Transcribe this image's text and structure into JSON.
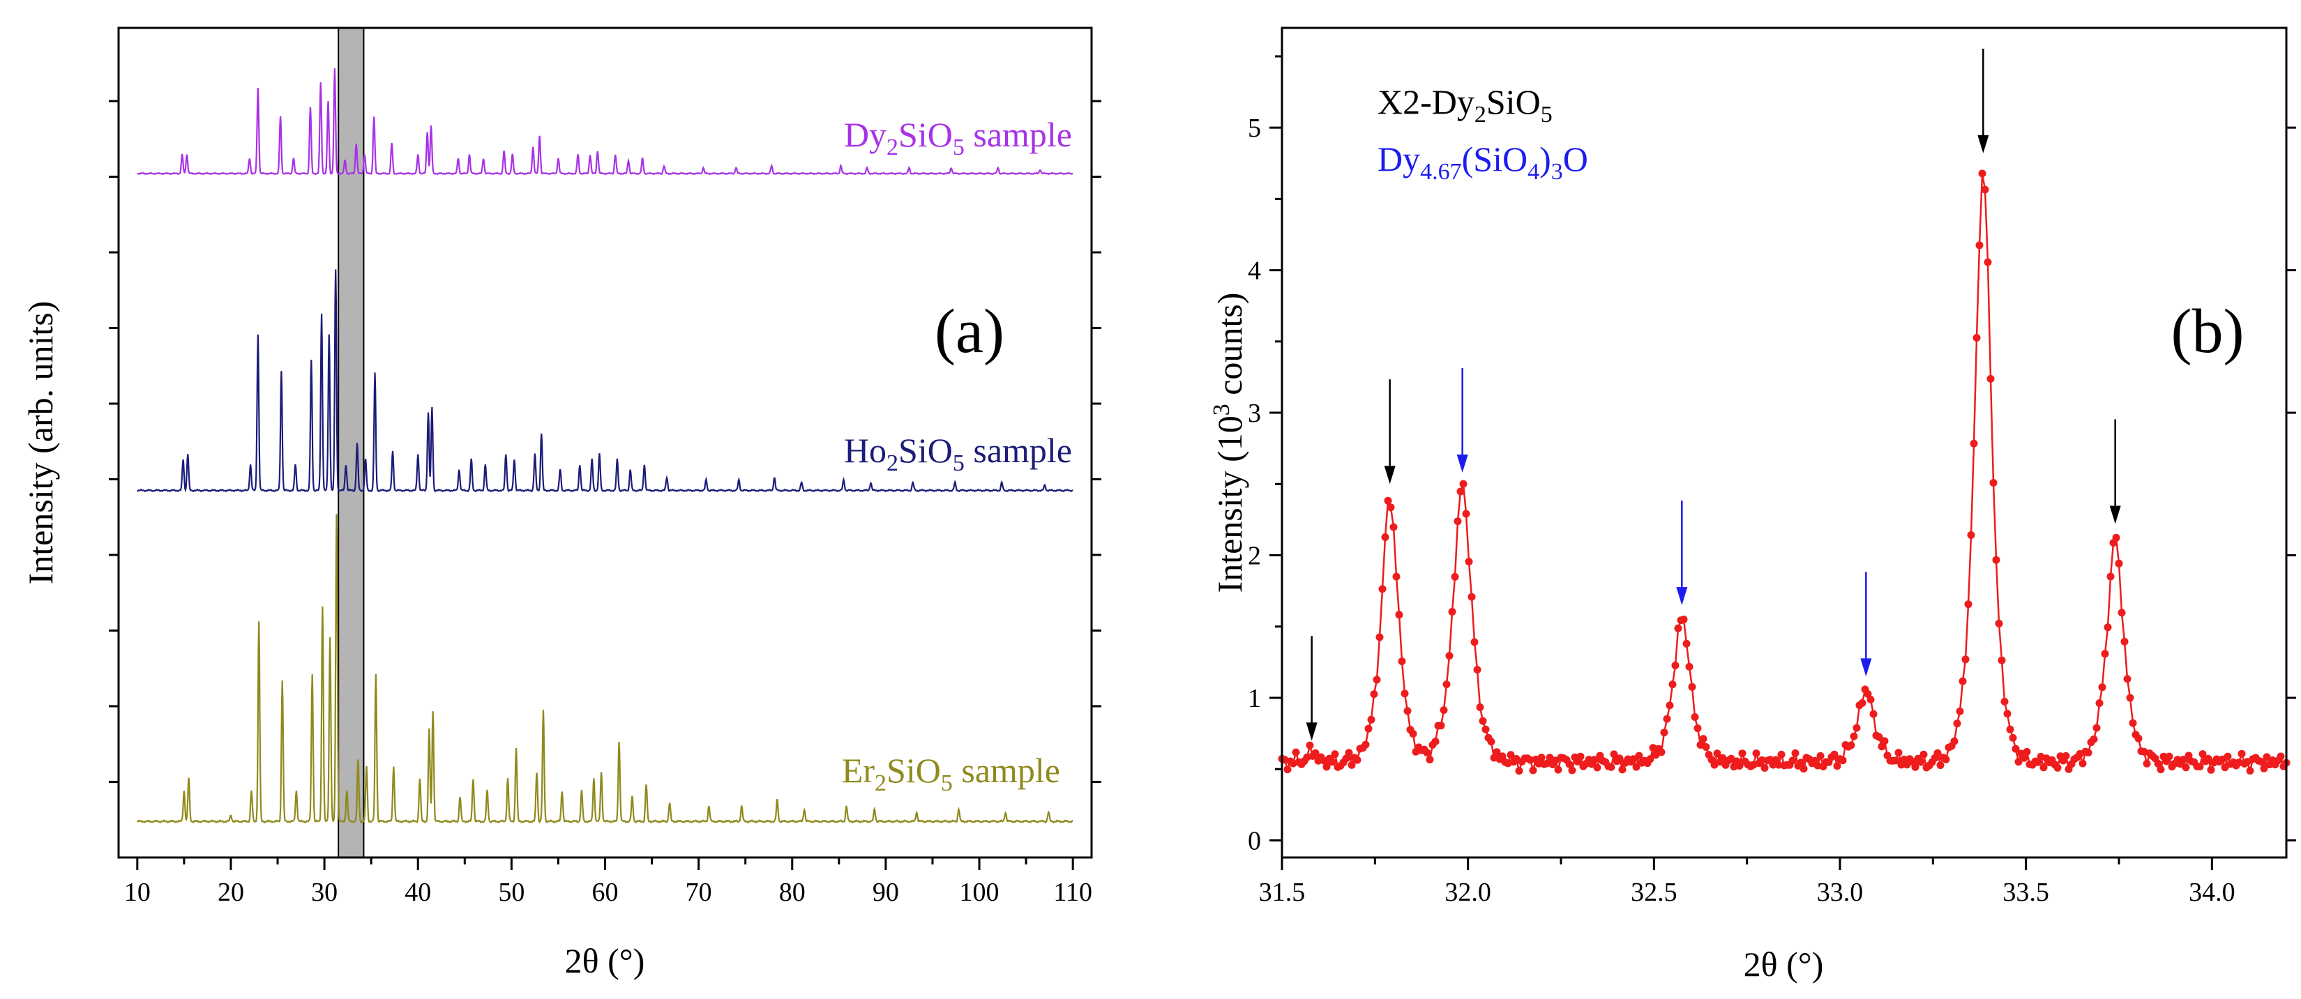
{
  "chart_data": [
    {
      "panel": "(a)",
      "type": "line",
      "xlabel": "2θ (°)",
      "ylabel": "Intensity (arb. units)",
      "xlim": [
        8,
        112
      ],
      "xticks": [
        10,
        20,
        30,
        40,
        50,
        60,
        70,
        80,
        90,
        100,
        110
      ],
      "yticks_labeled": false,
      "highlight_band": {
        "x_start": 31.5,
        "x_end": 34.2,
        "color": "#b4b4b4"
      },
      "series": [
        {
          "name": "Dy2SiO5 sample",
          "label_main": "Dy",
          "label_sub1": "2",
          "label_mid": "SiO",
          "label_sub2": "5",
          "label_tail": " sample",
          "color": "#a832e8",
          "offset": 2.0,
          "scale": 0.6,
          "peaks": [
            [
              14.8,
              0.1
            ],
            [
              15.3,
              0.1
            ],
            [
              22.0,
              0.08
            ],
            [
              22.9,
              0.45
            ],
            [
              25.3,
              0.3
            ],
            [
              26.7,
              0.08
            ],
            [
              28.5,
              0.35
            ],
            [
              29.6,
              0.48
            ],
            [
              30.4,
              0.38
            ],
            [
              31.1,
              0.55
            ],
            [
              32.2,
              0.07
            ],
            [
              33.4,
              0.16
            ],
            [
              34.3,
              0.1
            ],
            [
              35.3,
              0.3
            ],
            [
              37.2,
              0.16
            ],
            [
              40.0,
              0.1
            ],
            [
              41.0,
              0.22
            ],
            [
              41.4,
              0.25
            ],
            [
              44.3,
              0.08
            ],
            [
              45.5,
              0.1
            ],
            [
              47.0,
              0.08
            ],
            [
              49.2,
              0.12
            ],
            [
              50.1,
              0.1
            ],
            [
              52.3,
              0.14
            ],
            [
              53.0,
              0.2
            ],
            [
              55.0,
              0.08
            ],
            [
              57.1,
              0.1
            ],
            [
              58.4,
              0.1
            ],
            [
              59.2,
              0.12
            ],
            [
              61.1,
              0.1
            ],
            [
              62.5,
              0.07
            ],
            [
              64.0,
              0.08
            ],
            [
              66.3,
              0.04
            ],
            [
              70.5,
              0.03
            ],
            [
              74.0,
              0.03
            ],
            [
              77.8,
              0.04
            ],
            [
              85.2,
              0.04
            ],
            [
              88.0,
              0.03
            ],
            [
              92.5,
              0.03
            ],
            [
              97.0,
              0.03
            ],
            [
              102.0,
              0.03
            ],
            [
              106.5,
              0.02
            ]
          ]
        },
        {
          "name": "Ho2SiO5 sample",
          "label_main": "Ho",
          "label_sub1": "2",
          "label_mid": "SiO",
          "label_sub2": "5",
          "label_tail": " sample",
          "color": "#1c1c7a",
          "offset": 1.0,
          "scale": 0.82,
          "peaks": [
            [
              14.9,
              0.12
            ],
            [
              15.4,
              0.14
            ],
            [
              22.1,
              0.1
            ],
            [
              22.9,
              0.6
            ],
            [
              25.4,
              0.46
            ],
            [
              26.9,
              0.1
            ],
            [
              28.6,
              0.5
            ],
            [
              29.7,
              0.68
            ],
            [
              30.5,
              0.6
            ],
            [
              31.2,
              0.85
            ],
            [
              32.3,
              0.1
            ],
            [
              33.5,
              0.18
            ],
            [
              34.4,
              0.12
            ],
            [
              35.4,
              0.45
            ],
            [
              37.3,
              0.15
            ],
            [
              40.0,
              0.14
            ],
            [
              41.1,
              0.3
            ],
            [
              41.5,
              0.32
            ],
            [
              44.4,
              0.08
            ],
            [
              45.7,
              0.12
            ],
            [
              47.2,
              0.1
            ],
            [
              49.4,
              0.14
            ],
            [
              50.3,
              0.12
            ],
            [
              52.5,
              0.14
            ],
            [
              53.2,
              0.22
            ],
            [
              55.2,
              0.08
            ],
            [
              57.3,
              0.1
            ],
            [
              58.6,
              0.12
            ],
            [
              59.4,
              0.14
            ],
            [
              61.3,
              0.12
            ],
            [
              62.7,
              0.08
            ],
            [
              64.2,
              0.1
            ],
            [
              66.6,
              0.05
            ],
            [
              70.8,
              0.04
            ],
            [
              74.3,
              0.04
            ],
            [
              78.1,
              0.05
            ],
            [
              81.0,
              0.03
            ],
            [
              85.5,
              0.04
            ],
            [
              88.4,
              0.03
            ],
            [
              92.9,
              0.03
            ],
            [
              97.4,
              0.03
            ],
            [
              102.4,
              0.03
            ],
            [
              107.0,
              0.02
            ]
          ]
        },
        {
          "name": "Er2SiO5 sample",
          "label_main": "Er",
          "label_sub1": "2",
          "label_mid": "SiO",
          "label_sub2": "5",
          "label_tail": " sample",
          "color": "#8f8a1c",
          "offset": 0.0,
          "scale": 0.97,
          "peaks": [
            [
              15.0,
              0.1
            ],
            [
              15.5,
              0.14
            ],
            [
              20.0,
              0.02
            ],
            [
              22.2,
              0.1
            ],
            [
              23.0,
              0.65
            ],
            [
              25.5,
              0.46
            ],
            [
              27.0,
              0.1
            ],
            [
              28.7,
              0.48
            ],
            [
              29.8,
              0.7
            ],
            [
              30.6,
              0.6
            ],
            [
              31.3,
              1.0
            ],
            [
              32.4,
              0.1
            ],
            [
              33.6,
              0.2
            ],
            [
              34.5,
              0.18
            ],
            [
              35.5,
              0.48
            ],
            [
              37.4,
              0.18
            ],
            [
              40.2,
              0.14
            ],
            [
              41.2,
              0.3
            ],
            [
              41.6,
              0.36
            ],
            [
              44.5,
              0.08
            ],
            [
              45.9,
              0.14
            ],
            [
              47.4,
              0.1
            ],
            [
              49.6,
              0.14
            ],
            [
              50.5,
              0.24
            ],
            [
              52.7,
              0.16
            ],
            [
              53.4,
              0.36
            ],
            [
              55.4,
              0.1
            ],
            [
              57.5,
              0.1
            ],
            [
              58.8,
              0.14
            ],
            [
              59.6,
              0.16
            ],
            [
              61.5,
              0.26
            ],
            [
              62.9,
              0.08
            ],
            [
              64.4,
              0.12
            ],
            [
              66.9,
              0.06
            ],
            [
              71.1,
              0.05
            ],
            [
              74.6,
              0.05
            ],
            [
              78.4,
              0.07
            ],
            [
              81.3,
              0.04
            ],
            [
              85.8,
              0.05
            ],
            [
              88.8,
              0.04
            ],
            [
              93.3,
              0.03
            ],
            [
              97.8,
              0.04
            ],
            [
              102.8,
              0.03
            ],
            [
              107.4,
              0.03
            ]
          ]
        }
      ]
    },
    {
      "panel": "(b)",
      "type": "scatter",
      "xlabel": "2θ (°)",
      "ylabel_main": "Intensity (10",
      "ylabel_sup": "3",
      "ylabel_tail": " counts)",
      "xlim": [
        31.5,
        34.2
      ],
      "ylim": [
        -0.12,
        5.7
      ],
      "xticks": [
        "31.5",
        "32.0",
        "32.5",
        "33.0",
        "33.5",
        "34.0"
      ],
      "yticks": [
        "0",
        "1",
        "2",
        "3",
        "4",
        "5"
      ],
      "series_color": "#ee1c1c",
      "baseline": 0.55,
      "peaks": [
        {
          "center": 31.58,
          "amplitude": 0.07,
          "width": 0.02
        },
        {
          "center": 31.79,
          "amplitude": 1.86,
          "width": 0.035
        },
        {
          "center": 31.985,
          "amplitude": 1.95,
          "width": 0.038
        },
        {
          "center": 32.575,
          "amplitude": 1.02,
          "width": 0.035
        },
        {
          "center": 33.07,
          "amplitude": 0.5,
          "width": 0.035
        },
        {
          "center": 33.385,
          "amplitude": 4.16,
          "width": 0.035
        },
        {
          "center": 33.74,
          "amplitude": 1.56,
          "width": 0.035
        }
      ],
      "legend": [
        {
          "main": "X2-Dy",
          "sub1": "2",
          "mid": "SiO",
          "sub2": "5",
          "tail": "",
          "color": "#000000"
        },
        {
          "main": "Dy",
          "sub1": "4.67",
          "mid": "(SiO",
          "sub2": "4",
          "tail": ")",
          "sub3": "3",
          "end": "O",
          "color": "#1c1cf0"
        }
      ],
      "arrows": [
        {
          "x": 31.58,
          "y_tip": 0.7,
          "phase": "X2-Dy2SiO5",
          "color": "#000000"
        },
        {
          "x": 31.79,
          "y_tip": 2.5,
          "phase": "X2-Dy2SiO5",
          "color": "#000000"
        },
        {
          "x": 31.985,
          "y_tip": 2.58,
          "phase": "Dy4.67(SiO4)3O",
          "color": "#1c1cf0"
        },
        {
          "x": 32.575,
          "y_tip": 1.65,
          "phase": "Dy4.67(SiO4)3O",
          "color": "#1c1cf0"
        },
        {
          "x": 33.07,
          "y_tip": 1.15,
          "phase": "Dy4.67(SiO4)3O",
          "color": "#1c1cf0"
        },
        {
          "x": 33.385,
          "y_tip": 4.82,
          "phase": "X2-Dy2SiO5",
          "color": "#000000"
        },
        {
          "x": 33.74,
          "y_tip": 2.22,
          "phase": "X2-Dy2SiO5",
          "color": "#000000"
        }
      ]
    }
  ],
  "labels": {
    "panel_a": "(a)",
    "panel_b": "(b)",
    "xlabel_a": "2θ (°)",
    "xlabel_b": "2θ (°)",
    "ylabel_a": "Intensity (arb. units)"
  }
}
